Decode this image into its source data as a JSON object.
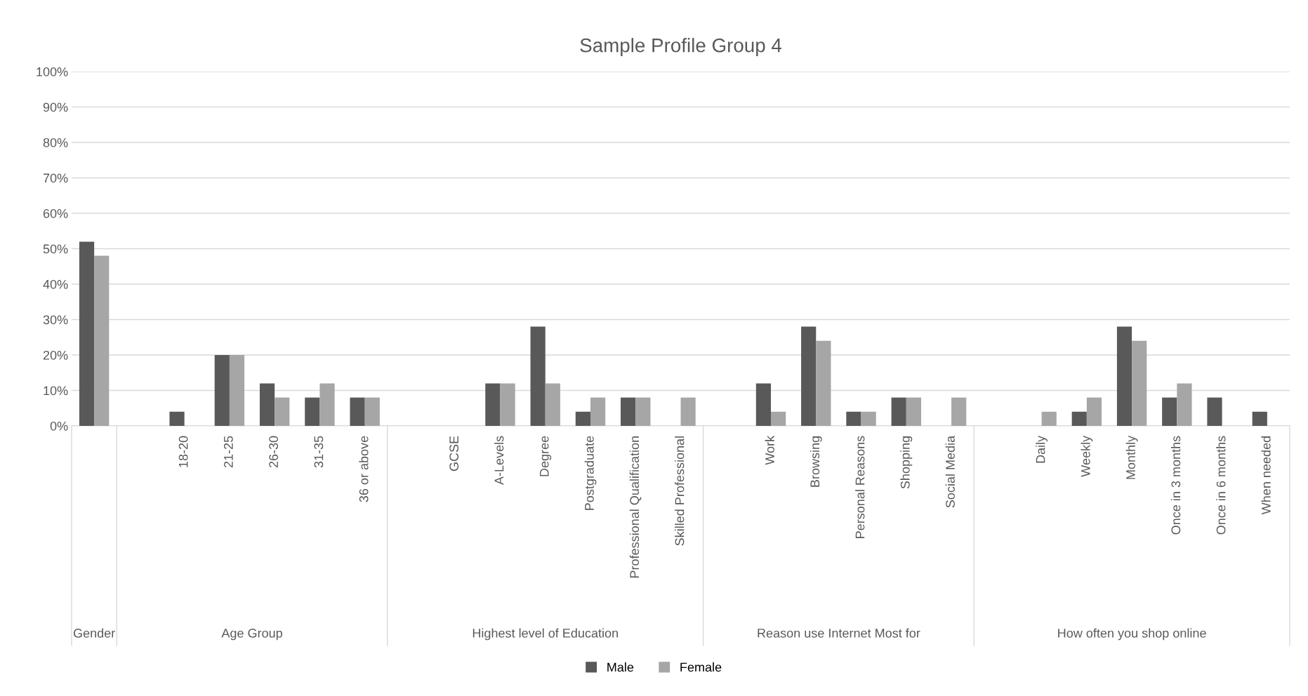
{
  "chart_data": {
    "type": "bar",
    "title": "Sample Profile Group 4",
    "categories": [
      null,
      null,
      "18-20",
      "21-25",
      "26-30",
      "31-35",
      "36 or above",
      null,
      "GCSE",
      "A-Levels",
      "Degree",
      "Postgraduate",
      "Professional Qualification",
      "Skilled Professional",
      null,
      "Work",
      "Browsing",
      "Personal Reasons",
      "Shopping",
      "Social Media",
      null,
      "Daily",
      "Weekly",
      "Monthly",
      "Once in 3 months",
      "Once in 6 months",
      "When needed"
    ],
    "series": [
      {
        "name": "Male",
        "color": "#595959",
        "values": [
          52,
          null,
          4,
          20,
          12,
          8,
          8,
          null,
          0,
          12,
          28,
          4,
          8,
          0,
          null,
          12,
          28,
          4,
          8,
          0,
          null,
          0,
          4,
          28,
          8,
          8,
          4
        ]
      },
      {
        "name": "Female",
        "color": "#a6a6a6",
        "values": [
          48,
          null,
          0,
          20,
          8,
          12,
          8,
          null,
          0,
          12,
          12,
          8,
          8,
          8,
          null,
          4,
          24,
          4,
          8,
          8,
          null,
          4,
          8,
          24,
          12,
          0,
          0
        ]
      }
    ],
    "annotations": [
      "Gender",
      "Age Group",
      "Highest level of Education",
      "Reason use Internet Most for",
      "How often you shop online"
    ],
    "ylim": [
      0,
      100
    ],
    "yticks": [
      {
        "value": 0,
        "label": "0%"
      },
      {
        "value": 10,
        "label": "10%"
      },
      {
        "value": 20,
        "label": "20%"
      },
      {
        "value": 30,
        "label": "30%"
      },
      {
        "value": 40,
        "label": "40%"
      },
      {
        "value": 50,
        "label": "50%"
      },
      {
        "value": 60,
        "label": "60%"
      },
      {
        "value": 70,
        "label": "70%"
      },
      {
        "value": 80,
        "label": "80%"
      },
      {
        "value": 90,
        "label": "90%"
      },
      {
        "value": 100,
        "label": "100%"
      }
    ],
    "grid": "y",
    "legend": "bottom"
  }
}
